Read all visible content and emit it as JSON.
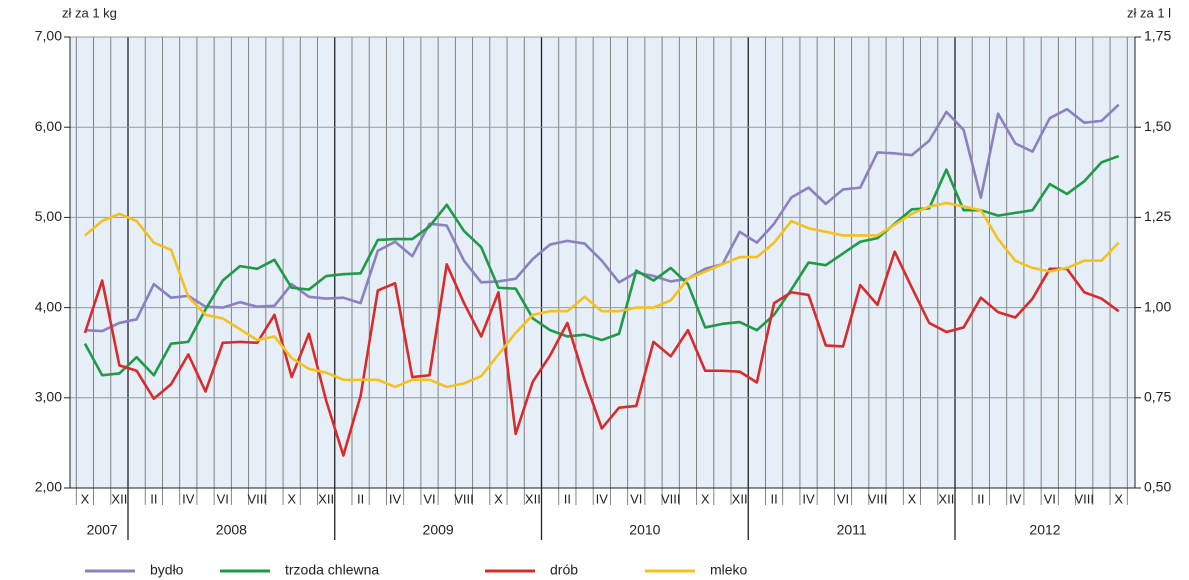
{
  "chart_data": {
    "type": "line",
    "y_axis_label": "zł za 1 kg",
    "y2_axis_label": "zł za 1 l",
    "categories": [
      "X",
      null,
      "XII",
      null,
      "II",
      null,
      "IV",
      null,
      "VI",
      null,
      "VIII",
      null,
      "X",
      null,
      "XII",
      null,
      "II",
      null,
      "IV",
      null,
      "VI",
      null,
      "VIII",
      null,
      "X",
      null,
      "XII",
      null,
      "II",
      null,
      "IV",
      null,
      "VI",
      null,
      "VIII",
      null,
      "X",
      null,
      "XII",
      null,
      "II",
      null,
      "IV",
      null,
      "VI",
      null,
      "VIII",
      null,
      "X",
      null,
      "XII",
      null,
      "II",
      null,
      "IV",
      null,
      "VI",
      null,
      "VIII",
      null,
      "X"
    ],
    "years": [
      "2007",
      "2008",
      "2009",
      "2010",
      "2011",
      "2012"
    ],
    "ylim": [
      2,
      7
    ],
    "yticks": [
      {
        "value": 2,
        "label": "2,00"
      },
      {
        "value": 3,
        "label": "3,00"
      },
      {
        "value": 4,
        "label": "4,00"
      },
      {
        "value": 5,
        "label": "5,00"
      },
      {
        "value": 6,
        "label": "6,00"
      },
      {
        "value": 7,
        "label": "7,00"
      }
    ],
    "y2lim": [
      0.5,
      1.75
    ],
    "y2ticks": [
      {
        "value": 0.5,
        "label": "0,50"
      },
      {
        "value": 0.75,
        "label": "0,75"
      },
      {
        "value": 1,
        "label": "1,00"
      },
      {
        "value": 1.25,
        "label": "1,25"
      },
      {
        "value": 1.5,
        "label": "1,50"
      },
      {
        "value": 1.75,
        "label": "1,75"
      }
    ],
    "grid": true,
    "legend": "bottom",
    "series": [
      {
        "name": "bydło",
        "color": "#8b80c0",
        "values": [
          3.75,
          3.74,
          3.83,
          3.87,
          4.26,
          4.11,
          4.13,
          4.01,
          4.0,
          4.06,
          4.01,
          4.02,
          4.26,
          4.12,
          4.1,
          4.11,
          4.05,
          4.63,
          4.73,
          4.57,
          4.93,
          4.91,
          4.52,
          4.28,
          4.29,
          4.32,
          4.54,
          4.7,
          4.74,
          4.71,
          4.52,
          4.28,
          4.39,
          4.35,
          4.29,
          4.32,
          4.43,
          4.48,
          4.84,
          4.72,
          4.93,
          5.22,
          5.33,
          5.15,
          5.31,
          5.33,
          5.72,
          5.71,
          5.69,
          5.85,
          6.17,
          5.97,
          5.22,
          6.15,
          5.82,
          5.73,
          6.1,
          6.2,
          6.05,
          6.07,
          6.25
        ]
      },
      {
        "name": "trzoda chlewna",
        "color": "#1f9a48",
        "values": [
          3.6,
          3.25,
          3.27,
          3.45,
          3.25,
          3.6,
          3.62,
          3.98,
          4.3,
          4.46,
          4.43,
          4.53,
          4.22,
          4.2,
          4.35,
          4.37,
          4.38,
          4.75,
          4.76,
          4.76,
          4.9,
          5.14,
          4.85,
          4.67,
          4.22,
          4.21,
          3.88,
          3.75,
          3.68,
          3.7,
          3.64,
          3.71,
          4.41,
          4.3,
          4.44,
          4.26,
          3.78,
          3.82,
          3.84,
          3.75,
          3.92,
          4.2,
          4.5,
          4.47,
          4.6,
          4.73,
          4.77,
          4.93,
          5.09,
          5.1,
          5.53,
          5.08,
          5.08,
          5.02,
          5.05,
          5.08,
          5.37,
          5.26,
          5.4,
          5.61,
          5.68
        ]
      },
      {
        "name": "drób",
        "color": "#d92b2b",
        "values": [
          3.72,
          4.3,
          3.36,
          3.3,
          2.99,
          3.15,
          3.48,
          3.07,
          3.61,
          3.62,
          3.61,
          3.92,
          3.23,
          3.71,
          2.97,
          2.36,
          3.02,
          4.19,
          4.27,
          3.23,
          3.25,
          4.48,
          4.05,
          3.68,
          4.17,
          2.6,
          3.18,
          3.47,
          3.83,
          3.2,
          2.66,
          2.89,
          2.91,
          3.62,
          3.46,
          3.75,
          3.3,
          3.3,
          3.29,
          3.17,
          4.05,
          4.17,
          4.14,
          3.58,
          3.57,
          4.25,
          4.03,
          4.62,
          4.22,
          3.83,
          3.73,
          3.78,
          4.11,
          3.95,
          3.89,
          4.1,
          4.43,
          4.43,
          4.17,
          4.1,
          3.96
        ]
      },
      {
        "name": "mleko",
        "color": "#f4c21f",
        "axis": "y2",
        "values": [
          1.2,
          1.24,
          1.26,
          1.24,
          1.18,
          1.16,
          1.03,
          0.98,
          0.97,
          0.94,
          0.91,
          0.92,
          0.86,
          0.83,
          0.82,
          0.8,
          0.8,
          0.8,
          0.78,
          0.8,
          0.8,
          0.78,
          0.79,
          0.81,
          0.87,
          0.93,
          0.98,
          0.99,
          0.99,
          1.03,
          0.99,
          0.99,
          1.0,
          1.0,
          1.02,
          1.08,
          1.1,
          1.12,
          1.14,
          1.14,
          1.18,
          1.24,
          1.22,
          1.21,
          1.2,
          1.2,
          1.2,
          1.23,
          1.26,
          1.28,
          1.29,
          1.28,
          1.27,
          1.19,
          1.13,
          1.11,
          1.1,
          1.11,
          1.13,
          1.13,
          1.18
        ]
      }
    ]
  }
}
